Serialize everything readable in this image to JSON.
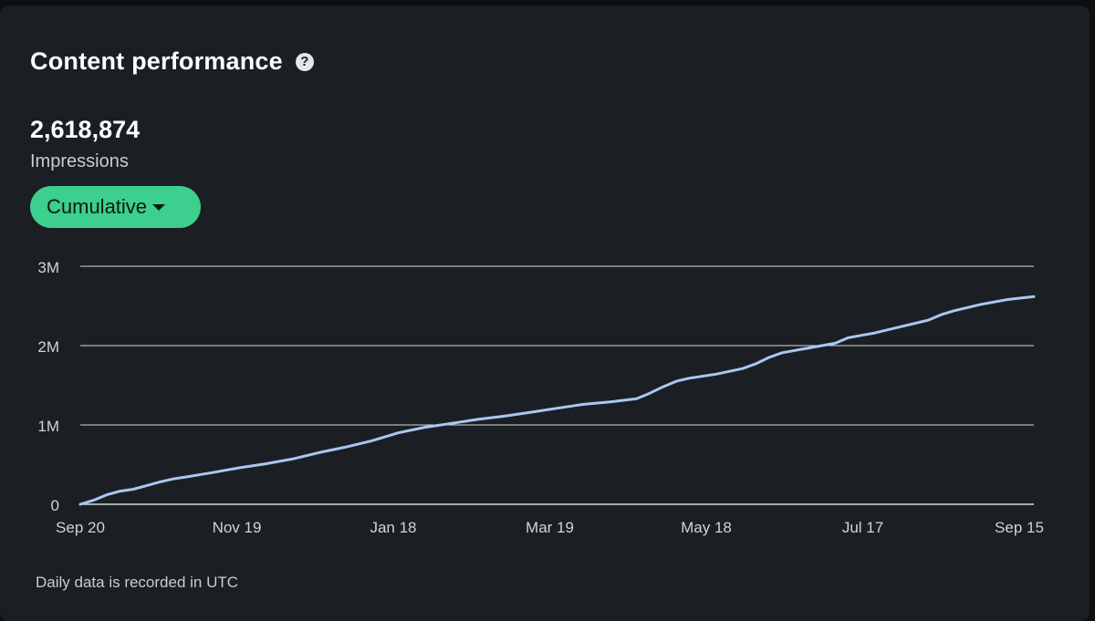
{
  "header": {
    "title": "Content performance",
    "help_icon": "question-circle-icon"
  },
  "metric": {
    "value": "2,618,874",
    "label": "Impressions"
  },
  "dropdown": {
    "label": "Cumulative",
    "icon": "caret-down-icon"
  },
  "footnote": "Daily data is recorded in UTC",
  "colors": {
    "background": "#1b1e23",
    "accent": "#3ccf8e",
    "line": "#a8c8f0",
    "grid": "#d8d8d8"
  },
  "chart_data": {
    "type": "line",
    "title": "",
    "xlabel": "",
    "ylabel": "",
    "x_ticks": [
      "Sep 20",
      "Nov 19",
      "Jan 18",
      "Mar 19",
      "May 18",
      "Jul 17",
      "Sep 15"
    ],
    "y_ticks": [
      {
        "value": 0,
        "label": "0"
      },
      {
        "value": 1000000,
        "label": "1M"
      },
      {
        "value": 2000000,
        "label": "2M"
      },
      {
        "value": 3000000,
        "label": "3M"
      }
    ],
    "ylim": [
      0,
      3000000
    ],
    "xlim": [
      0,
      360
    ],
    "grid": true,
    "series": [
      {
        "name": "Impressions",
        "x": [
          0,
          5,
          10,
          15,
          20,
          25,
          30,
          35,
          40,
          50,
          60,
          70,
          80,
          90,
          100,
          110,
          120,
          130,
          140,
          150,
          160,
          170,
          180,
          190,
          200,
          210,
          215,
          220,
          225,
          230,
          240,
          250,
          255,
          260,
          265,
          270,
          275,
          280,
          285,
          290,
          295,
          300,
          305,
          310,
          320,
          325,
          330,
          340,
          350,
          360
        ],
        "y": [
          0,
          50000,
          120000,
          165000,
          190000,
          235000,
          280000,
          320000,
          345000,
          400000,
          460000,
          510000,
          570000,
          650000,
          720000,
          800000,
          900000,
          970000,
          1020000,
          1070000,
          1110000,
          1160000,
          1210000,
          1260000,
          1290000,
          1330000,
          1400000,
          1480000,
          1550000,
          1590000,
          1640000,
          1710000,
          1770000,
          1850000,
          1910000,
          1940000,
          1970000,
          2000000,
          2030000,
          2100000,
          2130000,
          2160000,
          2200000,
          2240000,
          2320000,
          2390000,
          2440000,
          2520000,
          2580000,
          2618874
        ]
      }
    ]
  }
}
